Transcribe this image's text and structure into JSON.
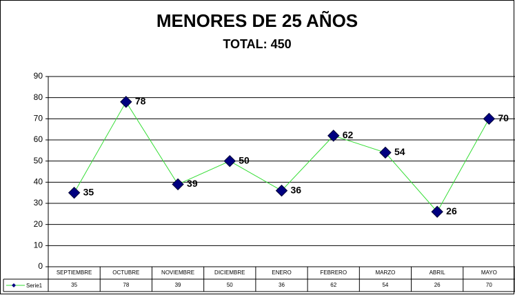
{
  "chart_data": {
    "type": "line",
    "title": "MENORES DE 25 AÑOS",
    "subtitle": "TOTAL: 450",
    "categories": [
      "SEPTIEMBRE",
      "OCTUBRE",
      "NOVIEMBRE",
      "DICIEMBRE",
      "ENERO",
      "FEBRERO",
      "MARZO",
      "ABRIL",
      "MAYO"
    ],
    "series": [
      {
        "name": "Serie1",
        "color": "#33dd33",
        "marker_color": "#000080",
        "values": [
          35,
          78,
          39,
          50,
          36,
          62,
          54,
          26,
          70
        ]
      }
    ],
    "ylim": [
      0,
      90
    ],
    "yticks": [
      0,
      10,
      20,
      30,
      40,
      50,
      60,
      70,
      80,
      90
    ],
    "grid": true,
    "data_table": true
  }
}
